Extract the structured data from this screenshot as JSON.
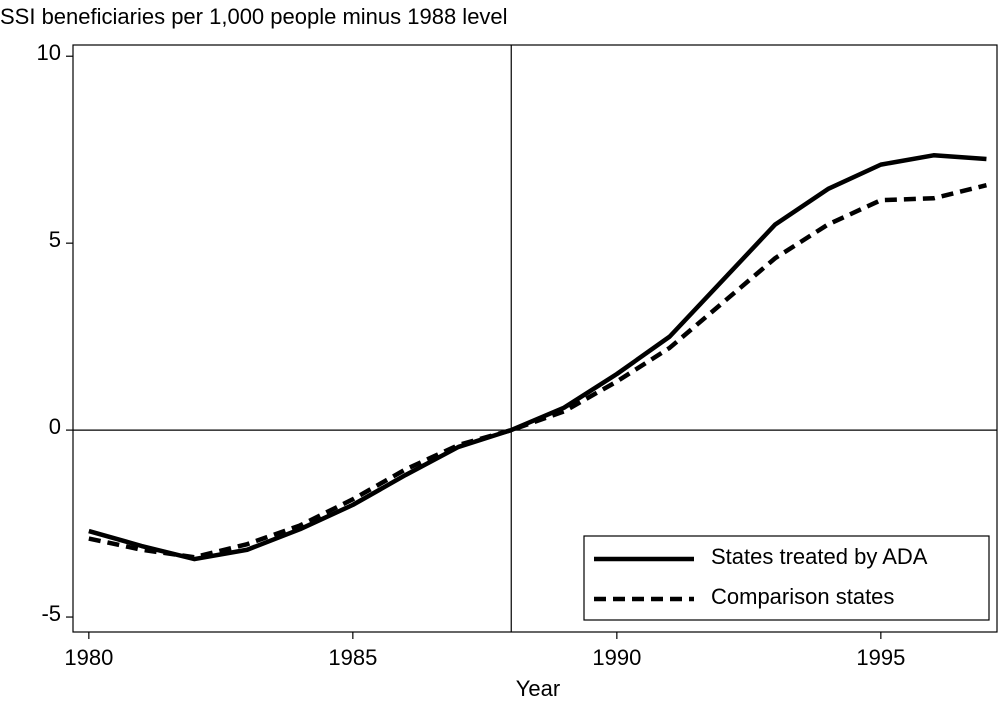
{
  "chart_data": {
    "type": "line",
    "title": "SSI beneficiaries per 1,000 people minus 1988 level",
    "x_label": "Year",
    "x": [
      1980,
      1981,
      1982,
      1983,
      1984,
      1985,
      1986,
      1987,
      1988,
      1989,
      1990,
      1991,
      1992,
      1993,
      1994,
      1995,
      1996,
      1997
    ],
    "series": [
      {
        "name": "States treated by ADA",
        "color": "#000000",
        "dash": "solid",
        "values": [
          -2.7,
          -3.1,
          -3.45,
          -3.2,
          -2.65,
          -2.0,
          -1.2,
          -0.45,
          0,
          0.6,
          1.5,
          2.5,
          4.0,
          5.5,
          6.45,
          7.1,
          7.35,
          7.25
        ]
      },
      {
        "name": "Comparison states",
        "color": "#000000",
        "dash": "dashed",
        "values": [
          -2.9,
          -3.2,
          -3.4,
          -3.05,
          -2.55,
          -1.85,
          -1.05,
          -0.4,
          0,
          0.5,
          1.3,
          2.2,
          3.4,
          4.6,
          5.5,
          6.15,
          6.2,
          6.55
        ]
      }
    ],
    "xlim": [
      1979.7,
      1997.2
    ],
    "xticks": [
      1980,
      1985,
      1990,
      1995
    ],
    "ylim": [
      -5.4,
      10.3
    ],
    "yticks": [
      -5,
      0,
      5,
      10
    ],
    "reference_x": 1988,
    "reference_y": 0,
    "legend": "lower right"
  }
}
